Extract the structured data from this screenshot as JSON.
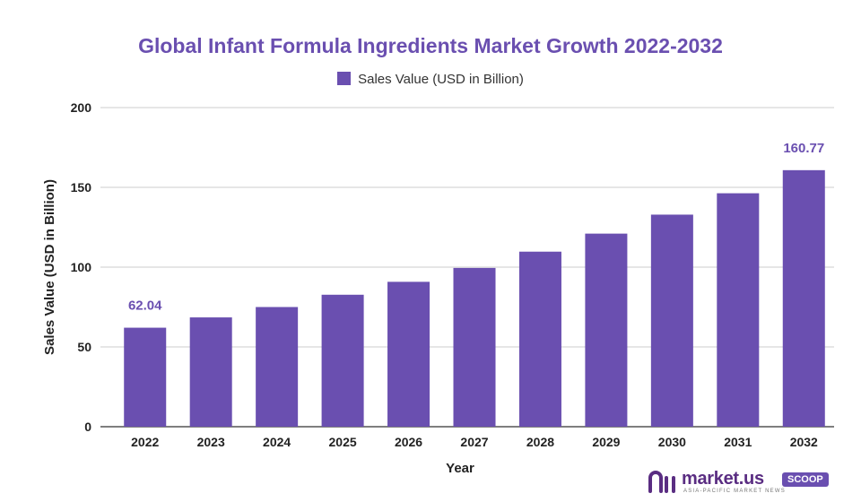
{
  "chart_data": {
    "type": "bar",
    "title": "Global Infant Formula Ingredients Market Growth 2022-2032",
    "xlabel": "Year",
    "ylabel": "Sales Value (USD in Billion)",
    "ylim": [
      0,
      200
    ],
    "yticks": [
      0,
      50,
      100,
      150,
      200
    ],
    "grid": true,
    "legend_position": "top-center",
    "categories": [
      "2022",
      "2023",
      "2024",
      "2025",
      "2026",
      "2027",
      "2028",
      "2029",
      "2030",
      "2031",
      "2032"
    ],
    "series": [
      {
        "name": "Sales Value (USD in Billion)",
        "color": "#6a4fb0",
        "values": [
          62.04,
          68.5,
          75.0,
          82.7,
          90.8,
          99.5,
          109.7,
          121.0,
          132.9,
          146.3,
          160.77
        ]
      }
    ],
    "data_labels": [
      {
        "category": "2022",
        "text": "62.04"
      },
      {
        "category": "2032",
        "text": "160.77"
      }
    ]
  },
  "logo": {
    "name": "market.us",
    "badge": "SCOOP",
    "tagline": "ASIA-PACIFIC MARKET NEWS",
    "color": "#5a2d82"
  }
}
